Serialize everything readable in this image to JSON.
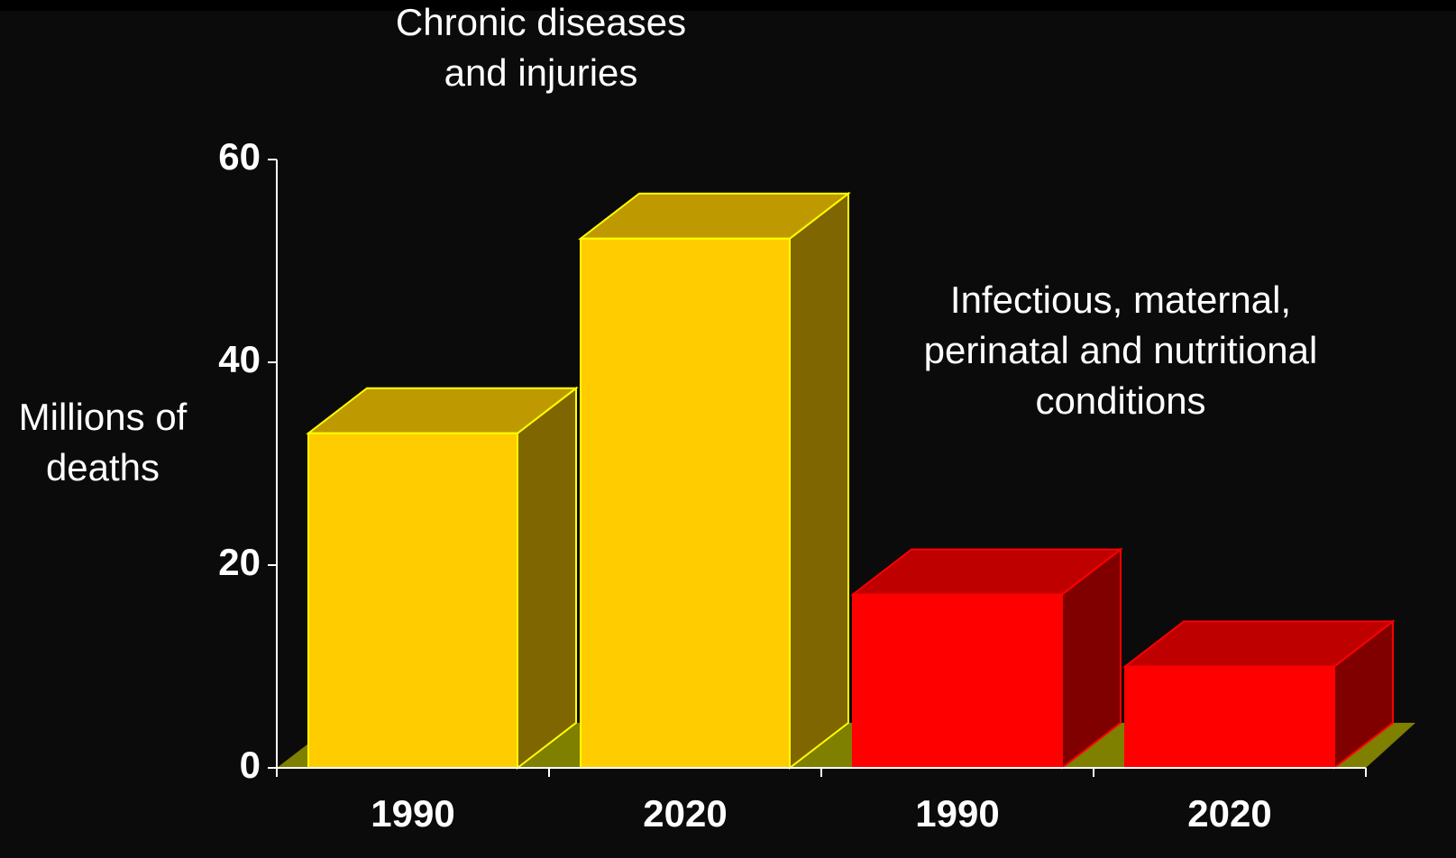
{
  "chart_data": {
    "type": "bar3d",
    "annotations": [
      {
        "lines": [
          "Chronic diseases",
          "and injuries"
        ]
      },
      {
        "lines": [
          "Infectious, maternal,",
          "perinatal and nutritional",
          "conditions"
        ]
      }
    ],
    "y_label": [
      "Millions of",
      "deaths"
    ],
    "categories": [
      "1990",
      "2020",
      "1990",
      "2020"
    ],
    "values": [
      33,
      52.2,
      17.1,
      10
    ],
    "colors": [
      "#ffcc00",
      "#ffcc00",
      "#ff0000",
      "#ff0000"
    ],
    "ylim": [
      0,
      60
    ],
    "yticks": [
      0,
      20,
      40,
      60
    ]
  }
}
